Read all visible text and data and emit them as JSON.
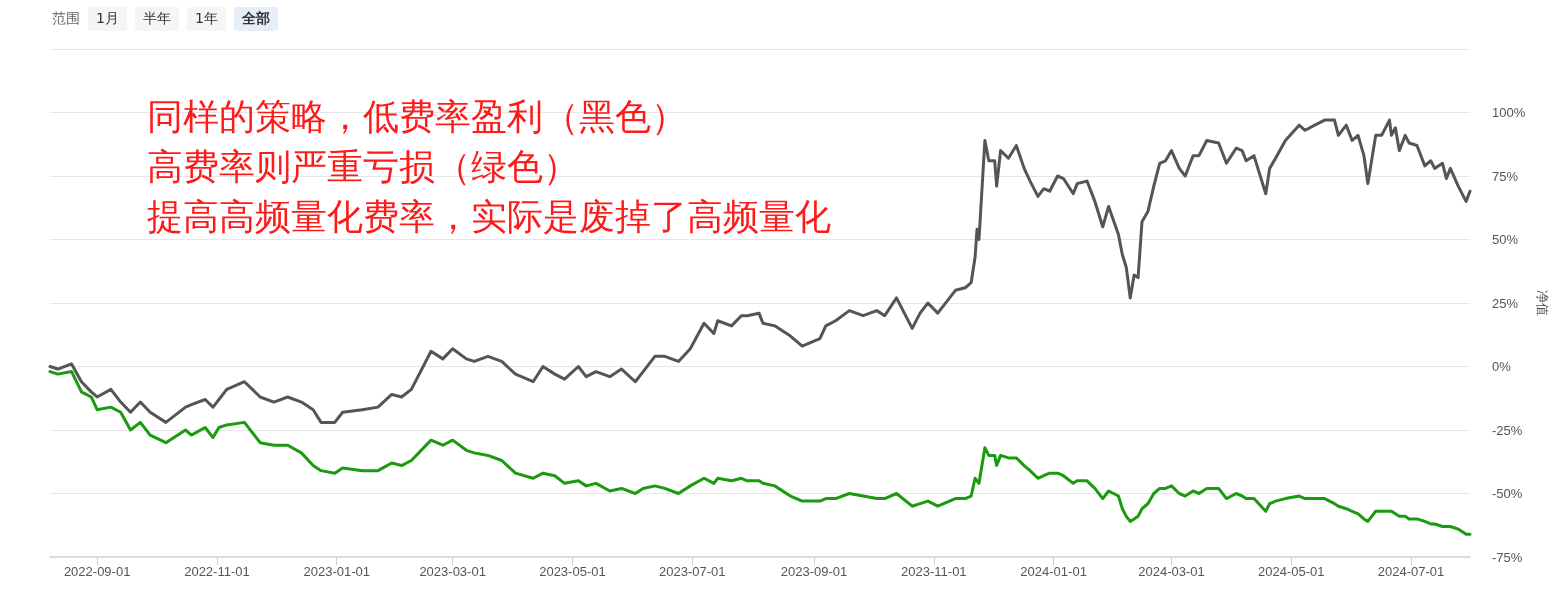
{
  "chart_data": {
    "type": "line",
    "annotations": [
      "范围",
      "1月",
      "半年",
      "1年",
      "全部",
      "同样的策略，低费率盈利（黑色）",
      "高费率则严重亏损（绿色）",
      "提高高频量化费率，实际是废掉了高频量化"
    ],
    "ylabel": "净值",
    "x": [
      "2022-08-08",
      "2022-08-12",
      "2022-08-19",
      "2022-08-24",
      "2022-08-29",
      "2022-09-01",
      "2022-09-08",
      "2022-09-13",
      "2022-09-18",
      "2022-09-23",
      "2022-09-28",
      "2022-10-06",
      "2022-10-16",
      "2022-10-19",
      "2022-10-26",
      "2022-10-30",
      "2022-11-02",
      "2022-11-06",
      "2022-11-15",
      "2022-11-23",
      "2022-11-30",
      "2022-12-07",
      "2022-12-14",
      "2022-12-20",
      "2022-12-24",
      "2022-12-31",
      "2023-01-04",
      "2023-01-14",
      "2023-01-22",
      "2023-01-29",
      "2023-02-03",
      "2023-02-08",
      "2023-02-18",
      "2023-02-24",
      "2023-03-01",
      "2023-03-08",
      "2023-03-12",
      "2023-03-19",
      "2023-03-26",
      "2023-04-02",
      "2023-04-11",
      "2023-04-16",
      "2023-04-22",
      "2023-04-27",
      "2023-05-04",
      "2023-05-08",
      "2023-05-13",
      "2023-05-20",
      "2023-05-26",
      "2023-06-02",
      "2023-06-06",
      "2023-06-12",
      "2023-06-17",
      "2023-06-24",
      "2023-06-30",
      "2023-07-07",
      "2023-07-12",
      "2023-07-14",
      "2023-07-21",
      "2023-07-26",
      "2023-07-29",
      "2023-08-04",
      "2023-08-06",
      "2023-08-12",
      "2023-08-20",
      "2023-08-26",
      "2023-09-04",
      "2023-09-07",
      "2023-09-12",
      "2023-09-19",
      "2023-09-26",
      "2023-10-03",
      "2023-10-07",
      "2023-10-13",
      "2023-10-21",
      "2023-10-25",
      "2023-10-29",
      "2023-11-03",
      "2023-11-12",
      "2023-11-17",
      "2023-11-20",
      "2023-11-22",
      "2023-11-23",
      "2023-11-24",
      "2023-11-27",
      "2023-11-29",
      "2023-12-02",
      "2023-12-03",
      "2023-12-05",
      "2023-12-09",
      "2023-12-13",
      "2023-12-17",
      "2023-12-20",
      "2023-12-24",
      "2023-12-27",
      "2023-12-30",
      "2024-01-03",
      "2024-01-06",
      "2024-01-11",
      "2024-01-13",
      "2024-01-18",
      "2024-01-22",
      "2024-01-26",
      "2024-01-29",
      "2024-02-03",
      "2024-02-05",
      "2024-02-07",
      "2024-02-09",
      "2024-02-11",
      "2024-02-13",
      "2024-02-15",
      "2024-02-18",
      "2024-02-21",
      "2024-02-24",
      "2024-02-27",
      "2024-03-01",
      "2024-03-05",
      "2024-03-08",
      "2024-03-12",
      "2024-03-15",
      "2024-03-19",
      "2024-03-25",
      "2024-03-29",
      "2024-04-03",
      "2024-04-06",
      "2024-04-08",
      "2024-04-12",
      "2024-04-18",
      "2024-04-20",
      "2024-04-23",
      "2024-04-28",
      "2024-05-05",
      "2024-05-08",
      "2024-05-13",
      "2024-05-18",
      "2024-05-23",
      "2024-05-25",
      "2024-05-29",
      "2024-06-01",
      "2024-06-04",
      "2024-06-07",
      "2024-06-09",
      "2024-06-13",
      "2024-06-16",
      "2024-06-20",
      "2024-06-21",
      "2024-06-23",
      "2024-06-25",
      "2024-06-28",
      "2024-06-30",
      "2024-07-04",
      "2024-07-08",
      "2024-07-11",
      "2024-07-13",
      "2024-07-17",
      "2024-07-19",
      "2024-07-21",
      "2024-07-25",
      "2024-07-29",
      "2024-07-31"
    ],
    "series": [
      {
        "color": "#555555",
        "values": [
          0,
          -1,
          1,
          -6,
          -10,
          -12,
          -9,
          -14,
          -18,
          -14,
          -18,
          -22,
          -16,
          -15,
          -13,
          -16,
          -13,
          -9,
          -6,
          -12,
          -14,
          -12,
          -14,
          -17,
          -22,
          -22,
          -18,
          -17,
          -16,
          -11,
          -12,
          -9,
          6,
          3,
          7,
          3,
          2,
          4,
          2,
          -3,
          -6,
          0,
          -3,
          -5,
          0,
          -4,
          -2,
          -4,
          -1,
          -6,
          -2,
          4,
          4,
          2,
          7,
          17,
          13,
          18,
          16,
          20,
          20,
          21,
          17,
          16,
          12,
          8,
          11,
          16,
          18,
          22,
          20,
          22,
          20,
          27,
          15,
          21,
          25,
          21,
          30,
          31,
          33,
          43,
          54,
          50,
          89,
          81,
          81,
          71,
          85,
          82,
          87,
          78,
          73,
          67,
          70,
          69,
          75,
          74,
          68,
          72,
          73,
          65,
          55,
          63,
          52,
          44,
          39,
          27,
          36,
          35,
          57,
          61,
          71,
          80,
          81,
          85,
          78,
          75,
          83,
          83,
          89,
          88,
          80,
          86,
          85,
          81,
          83,
          68,
          78,
          82,
          89,
          95,
          93,
          95,
          97,
          97,
          91,
          95,
          89,
          91,
          83,
          72,
          91,
          91,
          97,
          91,
          94,
          85,
          91,
          88,
          87,
          79,
          81,
          78,
          80,
          74,
          78,
          71,
          65,
          69
        ]
      },
      {
        "color": "#1a9a0e",
        "values": [
          -2,
          -3,
          -2,
          -10,
          -12,
          -17,
          -16,
          -18,
          -25,
          -22,
          -27,
          -30,
          -25,
          -27,
          -24,
          -28,
          -24,
          -23,
          -22,
          -30,
          -31,
          -31,
          -34,
          -39,
          -41,
          -42,
          -40,
          -41,
          -41,
          -38,
          -39,
          -37,
          -29,
          -31,
          -29,
          -33,
          -34,
          -35,
          -37,
          -42,
          -44,
          -42,
          -43,
          -46,
          -45,
          -47,
          -46,
          -49,
          -48,
          -50,
          -48,
          -47,
          -48,
          -50,
          -47,
          -44,
          -46,
          -44,
          -45,
          -44,
          -45,
          -45,
          -46,
          -47,
          -51,
          -53,
          -53,
          -52,
          -52,
          -50,
          -51,
          -52,
          -52,
          -50,
          -55,
          -54,
          -53,
          -55,
          -52,
          -52,
          -51,
          -44,
          -45,
          -46,
          -32,
          -35,
          -35,
          -39,
          -35,
          -36,
          -36,
          -39,
          -41,
          -44,
          -43,
          -42,
          -42,
          -43,
          -46,
          -45,
          -45,
          -48,
          -52,
          -49,
          -51,
          -56,
          -59,
          -61,
          -60,
          -59,
          -56,
          -54,
          -50,
          -48,
          -48,
          -47,
          -50,
          -51,
          -49,
          -50,
          -48,
          -48,
          -52,
          -50,
          -51,
          -52,
          -52,
          -57,
          -54,
          -53,
          -52,
          -51,
          -52,
          -52,
          -52,
          -54,
          -55,
          -56,
          -57,
          -58,
          -60,
          -61,
          -57,
          -57,
          -57,
          -57,
          -58,
          -59,
          -59,
          -60,
          -60,
          -61,
          -62,
          -62,
          -63,
          -63,
          -63,
          -64,
          -66,
          -66
        ]
      }
    ],
    "xlim": [
      "2022-08-08",
      "2024-07-31"
    ],
    "xticks": [
      "2022-09-01",
      "2022-11-01",
      "2023-01-01",
      "2023-03-01",
      "2023-05-01",
      "2023-07-01",
      "2023-09-01",
      "2023-11-01",
      "2024-01-01",
      "2024-03-01",
      "2024-05-01",
      "2024-07-01"
    ],
    "ylim": [
      -75,
      125
    ],
    "yticks": [
      {
        "value": -75,
        "label": "-75%"
      },
      {
        "value": -50,
        "label": "-50%"
      },
      {
        "value": -25,
        "label": "-25%"
      },
      {
        "value": 0,
        "label": "0%"
      },
      {
        "value": 25,
        "label": "25%"
      },
      {
        "value": 50,
        "label": "50%"
      },
      {
        "value": 75,
        "label": "75%"
      },
      {
        "value": 100,
        "label": "100%"
      },
      {
        "value": 125,
        "label": null
      }
    ],
    "grid": "y",
    "marker": "none",
    "line_style": "solid"
  }
}
